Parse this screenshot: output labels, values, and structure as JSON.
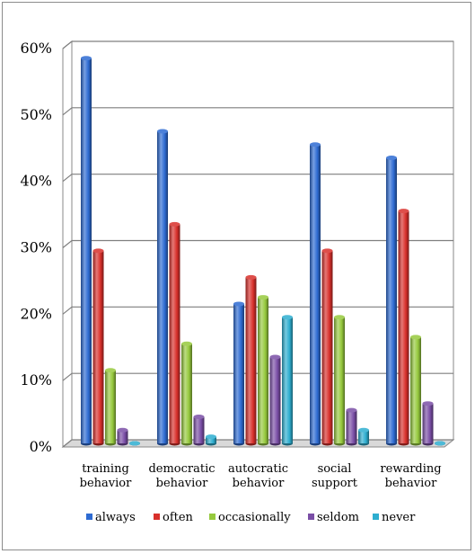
{
  "chart_data": {
    "type": "bar",
    "title": "",
    "xlabel": "",
    "ylabel": "",
    "ylim": [
      0,
      60
    ],
    "yticks": [
      "0%",
      "10%",
      "20%",
      "30%",
      "40%",
      "50%",
      "60%"
    ],
    "grid": true,
    "legend_position": "bottom",
    "categories": [
      [
        "training",
        "behavior"
      ],
      [
        "democratic",
        "behavior"
      ],
      [
        "autocratic",
        "behavior"
      ],
      [
        "social",
        "support"
      ],
      [
        "rewarding",
        "behavior"
      ]
    ],
    "series": [
      {
        "name": "always",
        "color": "#2e6bd2",
        "values": [
          58,
          47,
          21,
          45,
          43
        ]
      },
      {
        "name": "often",
        "color": "#d8302b",
        "values": [
          29,
          33,
          25,
          29,
          35
        ]
      },
      {
        "name": "occasionally",
        "color": "#96c93d",
        "values": [
          11,
          15,
          22,
          19,
          16
        ]
      },
      {
        "name": "seldom",
        "color": "#7a4ea6",
        "values": [
          2,
          4,
          13,
          5,
          6
        ]
      },
      {
        "name": "never",
        "color": "#2eaed0",
        "values": [
          0,
          1,
          19,
          2,
          0
        ]
      }
    ]
  }
}
